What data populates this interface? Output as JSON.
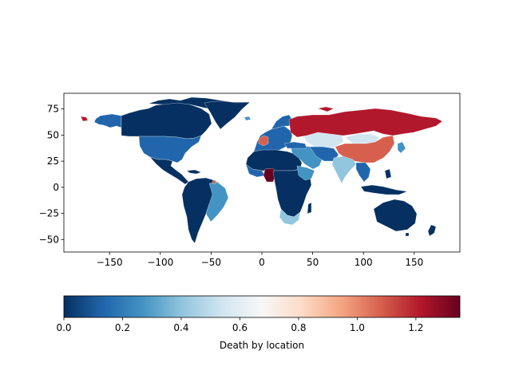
{
  "chart_data": {
    "type": "choropleth map",
    "colormap": "RdBu_r",
    "xlim": [
      -195,
      195
    ],
    "ylim": [
      -62,
      90
    ],
    "x_ticks": [
      {
        "value": -150,
        "label": "−150"
      },
      {
        "value": -100,
        "label": "−100"
      },
      {
        "value": -50,
        "label": "−50"
      },
      {
        "value": 0,
        "label": "0"
      },
      {
        "value": 50,
        "label": "50"
      },
      {
        "value": 100,
        "label": "100"
      },
      {
        "value": 150,
        "label": "150"
      }
    ],
    "y_ticks": [
      {
        "value": 75,
        "label": "75"
      },
      {
        "value": 50,
        "label": "50"
      },
      {
        "value": 25,
        "label": "25"
      },
      {
        "value": 0,
        "label": "0"
      },
      {
        "value": -25,
        "label": "−25"
      },
      {
        "value": -50,
        "label": "−50"
      }
    ],
    "colorbar": {
      "orientation": "horizontal",
      "range": [
        0.0,
        1.35
      ],
      "label": "Death by location",
      "ticks": [
        {
          "value": 0.0,
          "label": "0.0"
        },
        {
          "value": 0.2,
          "label": "0.2"
        },
        {
          "value": 0.4,
          "label": "0.4"
        },
        {
          "value": 0.6,
          "label": "0.6"
        },
        {
          "value": 0.8,
          "label": "0.8"
        },
        {
          "value": 1.0,
          "label": "1.0"
        },
        {
          "value": 1.2,
          "label": "1.2"
        }
      ],
      "gradient_stops": [
        "#053061",
        "#2166ac",
        "#4393c3",
        "#92c5de",
        "#d1e5f0",
        "#f7f7f7",
        "#fddbc7",
        "#f4a582",
        "#d6604d",
        "#b2182b",
        "#67001f"
      ]
    },
    "regions_approx": [
      {
        "region": "Russia",
        "value": 1.25
      },
      {
        "region": "China",
        "value": 0.95
      },
      {
        "region": "Nigeria",
        "value": 1.3
      },
      {
        "region": "France",
        "value": 1.1
      },
      {
        "region": "United States",
        "value": 0.15
      },
      {
        "region": "Brazil",
        "value": 0.3
      },
      {
        "region": "India",
        "value": 0.5
      },
      {
        "region": "Kazakhstan",
        "value": 0.5
      },
      {
        "region": "Mongolia",
        "value": 0.5
      },
      {
        "region": "Southern Africa",
        "value": 0.45
      },
      {
        "region": "Alaska",
        "value": 0.2
      },
      {
        "region": "Canada",
        "value": 0.0
      },
      {
        "region": "Greenland",
        "value": 0.0
      },
      {
        "region": "Australia",
        "value": 0.0
      },
      {
        "region": "Rest of Africa",
        "value": 0.05
      },
      {
        "region": "Rest of South America",
        "value": 0.05
      }
    ]
  }
}
